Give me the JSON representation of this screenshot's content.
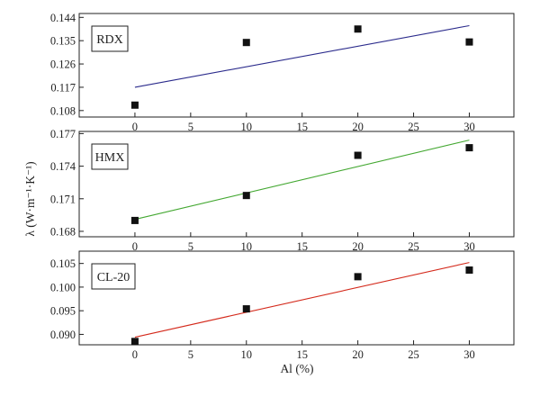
{
  "chart_data": [
    {
      "type": "scatter",
      "label": "RDX",
      "x": [
        0,
        10,
        20,
        30
      ],
      "y": [
        0.1101,
        0.1343,
        0.1395,
        0.1345
      ],
      "fit": {
        "x": [
          0,
          30
        ],
        "y": [
          0.117,
          0.1408
        ],
        "color": "#2b2b8c"
      },
      "xticks": [
        "0",
        "5",
        "10",
        "15",
        "20",
        "25",
        "30"
      ],
      "yticks": [
        "0.108",
        "0.117",
        "0.126",
        "0.135",
        "0.144"
      ],
      "ytick_values": [
        0.108,
        0.117,
        0.126,
        0.135,
        0.144
      ],
      "xlim": [
        -5,
        34
      ],
      "ylim": [
        0.1055,
        0.1455
      ]
    },
    {
      "type": "scatter",
      "label": "HMX",
      "x": [
        0,
        10,
        20,
        30
      ],
      "y": [
        0.169,
        0.1713,
        0.175,
        0.1757
      ],
      "fit": {
        "x": [
          0,
          30
        ],
        "y": [
          0.1691,
          0.1764
        ],
        "color": "#44a832"
      },
      "xticks": [
        "0",
        "5",
        "10",
        "15",
        "20",
        "25",
        "30"
      ],
      "yticks": [
        "0.168",
        "0.171",
        "0.174",
        "0.177"
      ],
      "ytick_values": [
        0.168,
        0.171,
        0.174,
        0.177
      ],
      "xlim": [
        -5,
        34
      ],
      "ylim": [
        0.1675,
        0.1772
      ]
    },
    {
      "type": "scatter",
      "label": "CL-20",
      "x": [
        0,
        10,
        20,
        30
      ],
      "y": [
        0.0885,
        0.0954,
        0.1022,
        0.1036
      ],
      "fit": {
        "x": [
          0,
          30
        ],
        "y": [
          0.0894,
          0.1052
        ],
        "color": "#d42a1c"
      },
      "xticks": [
        "0",
        "5",
        "10",
        "15",
        "20",
        "25",
        "30"
      ],
      "yticks": [
        "0.090",
        "0.095",
        "0.100",
        "0.105"
      ],
      "ytick_values": [
        0.09,
        0.095,
        0.1,
        0.105
      ],
      "xlim": [
        -5,
        34
      ],
      "ylim": [
        0.0878,
        0.1076
      ]
    }
  ],
  "xlabel": "Al (%)",
  "ylabel": "λ (W·m⁻¹·K⁻¹)",
  "marker_color": "#111111"
}
